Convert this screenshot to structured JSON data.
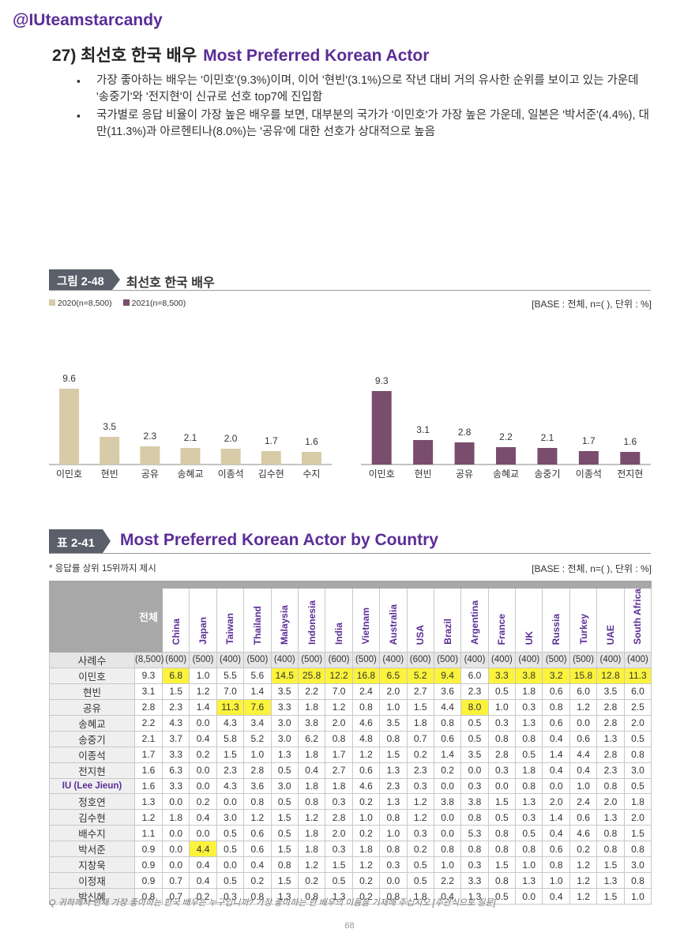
{
  "handle": "@IUteamstarcandy",
  "headline": {
    "kr": "27) 최선호 한국 배우",
    "en": "Most Preferred Korean Actor"
  },
  "bullets": [
    "가장 좋아하는 배우는 '이민호'(9.3%)이며, 이어 '현빈'(3.1%)으로 작년 대비 거의 유사한 순위를 보이고 있는 가운데 '송중기'와 '전지현'이 신규로 선호 top7에 진입함",
    "국가별로 응답 비율이 가장 높은 배우를 보면, 대부분의 국가가 '이민호'가 가장 높은 가운데, 일본은 '박서준'(4.4%), 대만(11.3%)과 아르헨티나(8.0%)는 '공유'에 대한 선호가 상대적으로 높음"
  ],
  "figure": {
    "tag": "그림 2-48",
    "title": "최선호 한국 배우",
    "base": "[BASE : 전체, n=( ), 단위 : %]",
    "legend_2020": "2020(n=8,500)",
    "legend_2021": "2021(n=8,500)",
    "color_2020": "#d8cba8",
    "color_2021": "#7a4d6e"
  },
  "chart_data": [
    {
      "type": "bar",
      "series_name": "2020(n=8,500)",
      "categories": [
        "이민호",
        "현빈",
        "공유",
        "송혜교",
        "이종석",
        "김수현",
        "수지"
      ],
      "values": [
        9.6,
        3.5,
        2.3,
        2.1,
        2.0,
        1.7,
        1.6
      ],
      "ylim": [
        0,
        10
      ]
    },
    {
      "type": "bar",
      "series_name": "2021(n=8,500)",
      "categories": [
        "이민호",
        "현빈",
        "공유",
        "송혜교",
        "송중기",
        "이종석",
        "전지현"
      ],
      "values": [
        9.3,
        3.1,
        2.8,
        2.2,
        2.1,
        1.7,
        1.6
      ],
      "ylim": [
        0,
        10
      ]
    }
  ],
  "table": {
    "tag": "표 2-41",
    "title": "Most Preferred Korean Actor by Country",
    "note": "* 응답률 상위 15위까지 제시",
    "base": "[BASE : 전체, n=( ), 단위 : %]",
    "total_label": "전체",
    "countries": [
      "China",
      "Japan",
      "Taiwan",
      "Thailand",
      "Malaysia",
      "Indonesia",
      "India",
      "Vietnam",
      "Australia",
      "USA",
      "Brazil",
      "Argentina",
      "France",
      "UK",
      "Russia",
      "Turkey",
      "UAE",
      "South Africa"
    ],
    "sample_label": "사례수",
    "samples": [
      "(8,500)",
      "(600)",
      "(500)",
      "(400)",
      "(500)",
      "(400)",
      "(500)",
      "(600)",
      "(500)",
      "(400)",
      "(600)",
      "(500)",
      "(400)",
      "(400)",
      "(400)",
      "(500)",
      "(500)",
      "(400)",
      "(400)"
    ],
    "rows": [
      {
        "label": "이민호",
        "values": [
          "9.3",
          "6.8",
          "1.0",
          "5.5",
          "5.6",
          "14.5",
          "25.8",
          "12.2",
          "16.8",
          "6.5",
          "5.2",
          "9.4",
          "6.0",
          "3.3",
          "3.8",
          "3.2",
          "15.8",
          "12.8",
          "11.3"
        ]
      },
      {
        "label": "현빈",
        "values": [
          "3.1",
          "1.5",
          "1.2",
          "7.0",
          "1.4",
          "3.5",
          "2.2",
          "7.0",
          "2.4",
          "2.0",
          "2.7",
          "3.6",
          "2.3",
          "0.5",
          "1.8",
          "0.6",
          "6.0",
          "3.5",
          "6.0"
        ]
      },
      {
        "label": "공유",
        "values": [
          "2.8",
          "2.3",
          "1.4",
          "11.3",
          "7.6",
          "3.3",
          "1.8",
          "1.2",
          "0.8",
          "1.0",
          "1.5",
          "4.4",
          "8.0",
          "1.0",
          "0.3",
          "0.8",
          "1.2",
          "2.8",
          "2.5"
        ]
      },
      {
        "label": "송혜교",
        "values": [
          "2.2",
          "4.3",
          "0.0",
          "4.3",
          "3.4",
          "3.0",
          "3.8",
          "2.0",
          "4.6",
          "3.5",
          "1.8",
          "0.8",
          "0.5",
          "0.3",
          "1.3",
          "0.6",
          "0.0",
          "2.8",
          "2.0"
        ]
      },
      {
        "label": "송중기",
        "values": [
          "2.1",
          "3.7",
          "0.4",
          "5.8",
          "5.2",
          "3.0",
          "6.2",
          "0.8",
          "4.8",
          "0.8",
          "0.7",
          "0.6",
          "0.5",
          "0.8",
          "0.8",
          "0.4",
          "0.6",
          "1.3",
          "0.5"
        ]
      },
      {
        "label": "이종석",
        "values": [
          "1.7",
          "3.3",
          "0.2",
          "1.5",
          "1.0",
          "1.3",
          "1.8",
          "1.7",
          "1.2",
          "1.5",
          "0.2",
          "1.4",
          "3.5",
          "2.8",
          "0.5",
          "1.4",
          "4.4",
          "2.8",
          "0.8"
        ]
      },
      {
        "label": "전지현",
        "values": [
          "1.6",
          "6.3",
          "0.0",
          "2.3",
          "2.8",
          "0.5",
          "0.4",
          "2.7",
          "0.6",
          "1.3",
          "2.3",
          "0.2",
          "0.0",
          "0.3",
          "1.8",
          "0.4",
          "0.4",
          "2.3",
          "3.0"
        ]
      },
      {
        "label": "IU (Lee Jieun)",
        "values": [
          "1.6",
          "3.3",
          "0.0",
          "4.3",
          "3.6",
          "3.0",
          "1.8",
          "1.8",
          "4.6",
          "2.3",
          "0.3",
          "0.0",
          "0.3",
          "0.0",
          "0.8",
          "0.0",
          "1.0",
          "0.8",
          "0.5"
        ]
      },
      {
        "label": "정호연",
        "values": [
          "1.3",
          "0.0",
          "0.2",
          "0.0",
          "0.8",
          "0.5",
          "0.8",
          "0.3",
          "0.2",
          "1.3",
          "1.2",
          "3.8",
          "3.8",
          "1.5",
          "1.3",
          "2.0",
          "2.4",
          "2.0",
          "1.8"
        ]
      },
      {
        "label": "김수현",
        "values": [
          "1.2",
          "1.8",
          "0.4",
          "3.0",
          "1.2",
          "1.5",
          "1.2",
          "2.8",
          "1.0",
          "0.8",
          "1.2",
          "0.0",
          "0.8",
          "0.5",
          "0.3",
          "1.4",
          "0.6",
          "1.3",
          "2.0"
        ]
      },
      {
        "label": "배수지",
        "values": [
          "1.1",
          "0.0",
          "0.0",
          "0.5",
          "0.6",
          "0.5",
          "1.8",
          "2.0",
          "0.2",
          "1.0",
          "0.3",
          "0.0",
          "5.3",
          "0.8",
          "0.5",
          "0.4",
          "4.6",
          "0.8",
          "1.5"
        ]
      },
      {
        "label": "박서준",
        "values": [
          "0.9",
          "0.0",
          "4.4",
          "0.5",
          "0.6",
          "1.5",
          "1.8",
          "0.3",
          "1.8",
          "0.8",
          "0.2",
          "0.8",
          "0.8",
          "0.8",
          "0.8",
          "0.6",
          "0.2",
          "0.8",
          "0.8"
        ]
      },
      {
        "label": "지창욱",
        "values": [
          "0.9",
          "0.0",
          "0.4",
          "0.0",
          "0.4",
          "0.8",
          "1.2",
          "1.5",
          "1.2",
          "0.3",
          "0.5",
          "1.0",
          "0.3",
          "1.5",
          "1.0",
          "0.8",
          "1.2",
          "1.5",
          "3.0"
        ]
      },
      {
        "label": "이정재",
        "values": [
          "0.9",
          "0.7",
          "0.4",
          "0.5",
          "0.2",
          "1.5",
          "0.2",
          "0.5",
          "0.2",
          "0.0",
          "0.5",
          "2.2",
          "3.3",
          "0.8",
          "1.3",
          "1.0",
          "1.2",
          "1.3",
          "0.8"
        ]
      },
      {
        "label": "박신혜",
        "values": [
          "0.8",
          "0.7",
          "0.2",
          "0.3",
          "0.8",
          "1.3",
          "0.8",
          "1.3",
          "0.2",
          "0.8",
          "1.8",
          "0.4",
          "1.3",
          "0.5",
          "0.0",
          "0.4",
          "1.2",
          "1.5",
          "1.0"
        ]
      }
    ],
    "highlight_color": "#fbf33c"
  },
  "question_note": "Q 귀하께서 현재 가장 좋아하는 한국 배우는 누구입니까? 가장 좋아하는 한 배우의 이름을 기재해 주십시오 [주관식으로 질문]",
  "page_number": "68"
}
